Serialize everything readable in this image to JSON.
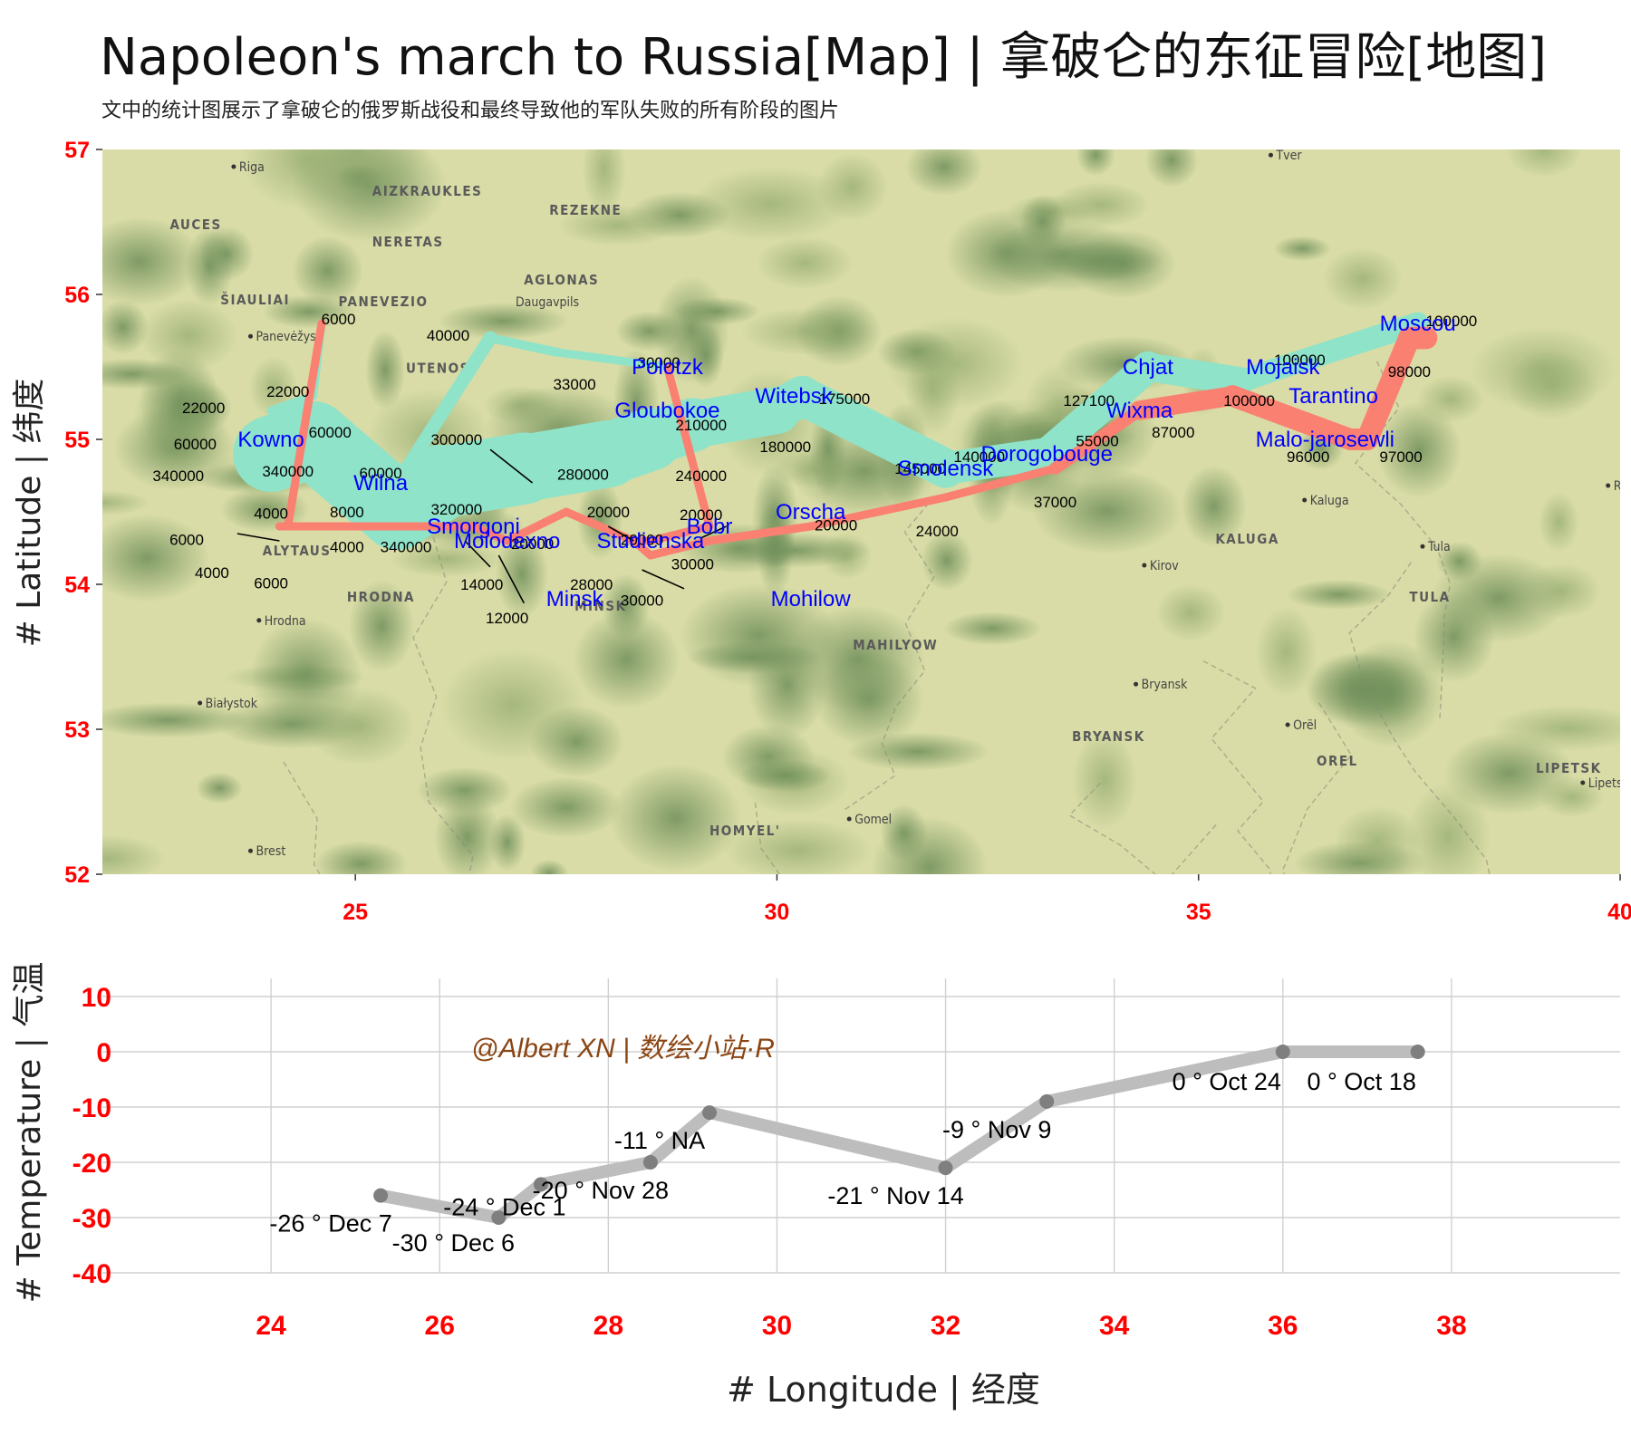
{
  "title": "Napoleon's march to Russia[Map] | 拿破仑的东征冒险[地图]",
  "subtitle": "文中的统计图展示了拿破仑的俄罗斯战役和最终导致他的军队失败的所有阶段的图片",
  "watermark": "@Albert XN | 数绘小站·R",
  "colors": {
    "advance": "#8fe3c8",
    "retreat": "#fa8072",
    "city": "#0000ff",
    "tick": "#ff0000",
    "temp_line": "#bdbdbd",
    "temp_point": "#7f7f7f",
    "watermark": "#8b4513"
  },
  "chart_data": [
    {
      "type": "map",
      "ylabel": "# Latitude | 纬度",
      "xlim": [
        22,
        40
      ],
      "ylim": [
        52,
        57
      ],
      "x_ticks": [
        25,
        30,
        35,
        40
      ],
      "y_ticks": [
        52,
        53,
        54,
        55,
        56,
        57
      ],
      "basemap_labels": [
        {
          "text": "Riga",
          "lon": 23.6,
          "lat": 56.85,
          "dot": true
        },
        {
          "text": "AIZKRAUKLES",
          "lon": 25.2,
          "lat": 56.68
        },
        {
          "text": "AUCES",
          "lon": 22.8,
          "lat": 56.45
        },
        {
          "text": "REZEKNE",
          "lon": 27.3,
          "lat": 56.55
        },
        {
          "text": "NERETAS",
          "lon": 25.2,
          "lat": 56.33
        },
        {
          "text": "AGLONAS",
          "lon": 27.0,
          "lat": 56.07
        },
        {
          "text": "ŠIAULIAI",
          "lon": 23.4,
          "lat": 55.93
        },
        {
          "text": "PANEVEZIO",
          "lon": 24.8,
          "lat": 55.92
        },
        {
          "text": "Daugavpils",
          "lon": 26.9,
          "lat": 55.92
        },
        {
          "text": "Panevėžys",
          "lon": 23.8,
          "lat": 55.68,
          "dot": true
        },
        {
          "text": "UTENOS",
          "lon": 25.6,
          "lat": 55.46
        },
        {
          "text": "Tver",
          "lon": 35.9,
          "lat": 56.93,
          "dot": true
        },
        {
          "text": "KALUGA",
          "lon": 35.2,
          "lat": 54.28
        },
        {
          "text": "Kaluga",
          "lon": 36.3,
          "lat": 54.55,
          "dot": true
        },
        {
          "text": "Kirov",
          "lon": 34.4,
          "lat": 54.1,
          "dot": true
        },
        {
          "text": "Tula",
          "lon": 37.7,
          "lat": 54.23,
          "dot": true
        },
        {
          "text": "TULA",
          "lon": 37.5,
          "lat": 53.88
        },
        {
          "text": "ALYTAUS",
          "lon": 23.9,
          "lat": 54.2
        },
        {
          "text": "HRODNA",
          "lon": 24.9,
          "lat": 53.88
        },
        {
          "text": "Hrodna",
          "lon": 23.9,
          "lat": 53.72,
          "dot": true
        },
        {
          "text": "MINSK",
          "lon": 27.6,
          "lat": 53.82
        },
        {
          "text": "MAHILYOW",
          "lon": 30.9,
          "lat": 53.55
        },
        {
          "text": "Białystok",
          "lon": 23.2,
          "lat": 53.15,
          "dot": true
        },
        {
          "text": "Bryansk",
          "lon": 34.3,
          "lat": 53.28,
          "dot": true
        },
        {
          "text": "BRYANSK",
          "lon": 33.5,
          "lat": 52.92
        },
        {
          "text": "Orël",
          "lon": 36.1,
          "lat": 53.0,
          "dot": true
        },
        {
          "text": "OREL",
          "lon": 36.4,
          "lat": 52.75
        },
        {
          "text": "LIPETSK",
          "lon": 39.0,
          "lat": 52.7
        },
        {
          "text": "Lipets",
          "lon": 39.6,
          "lat": 52.6,
          "dot": true
        },
        {
          "text": "HOMYEL'",
          "lon": 29.2,
          "lat": 52.27
        },
        {
          "text": "Gomel",
          "lon": 30.9,
          "lat": 52.35,
          "dot": true
        },
        {
          "text": "Brest",
          "lon": 23.8,
          "lat": 52.13,
          "dot": true
        },
        {
          "text": "Ryaz",
          "lon": 39.9,
          "lat": 54.65,
          "dot": true
        }
      ],
      "advance_groups": [
        [
          [
            24.0,
            54.9,
            340000
          ],
          [
            24.5,
            55.0,
            340000
          ],
          [
            25.5,
            54.5,
            340000
          ],
          [
            26.0,
            54.7,
            320000
          ],
          [
            27.0,
            54.8,
            300000
          ],
          [
            28.0,
            54.9,
            280000
          ],
          [
            28.5,
            55.0,
            240000
          ],
          [
            29.0,
            55.1,
            210000
          ],
          [
            30.0,
            55.2,
            180000
          ],
          [
            30.3,
            55.3,
            175000
          ],
          [
            32.0,
            54.8,
            145000
          ],
          [
            33.2,
            54.9,
            140000
          ],
          [
            34.4,
            55.5,
            127100
          ],
          [
            35.5,
            55.4,
            100000
          ],
          [
            36.0,
            55.5,
            100000
          ],
          [
            37.6,
            55.8,
            100000
          ]
        ],
        [
          [
            24.0,
            55.1,
            60000
          ],
          [
            24.5,
            55.2,
            60000
          ],
          [
            25.5,
            54.7,
            60000
          ],
          [
            26.6,
            55.7,
            40000
          ],
          [
            27.4,
            55.6,
            33000
          ],
          [
            28.7,
            55.5,
            33000
          ]
        ],
        [
          [
            24.0,
            55.2,
            22000
          ],
          [
            24.5,
            55.3,
            22000
          ],
          [
            24.6,
            55.8,
            6000
          ]
        ]
      ],
      "retreat_groups": [
        [
          [
            37.7,
            55.7,
            100000
          ],
          [
            37.5,
            55.7,
            98000
          ],
          [
            37.0,
            55.0,
            97000
          ],
          [
            36.8,
            55.0,
            96000
          ],
          [
            35.4,
            55.3,
            87000
          ],
          [
            34.3,
            55.2,
            55000
          ],
          [
            33.3,
            54.8,
            37000
          ],
          [
            32.0,
            54.6,
            24000
          ],
          [
            30.4,
            54.4,
            20000
          ],
          [
            29.2,
            54.3,
            20000
          ],
          [
            28.5,
            54.2,
            20000
          ],
          [
            28.3,
            54.3,
            20000
          ],
          [
            27.5,
            54.5,
            20000
          ],
          [
            26.8,
            54.3,
            12000
          ],
          [
            26.4,
            54.4,
            14000
          ],
          [
            25.0,
            54.4,
            8000
          ],
          [
            24.4,
            54.4,
            4000
          ],
          [
            24.2,
            54.4,
            4000
          ],
          [
            24.1,
            54.4,
            4000
          ]
        ],
        [
          [
            28.7,
            55.5,
            30000
          ],
          [
            29.2,
            54.4,
            30000
          ],
          [
            28.5,
            54.3,
            30000
          ],
          [
            28.3,
            54.3,
            28000
          ]
        ],
        [
          [
            24.6,
            55.8,
            6000
          ],
          [
            24.2,
            54.4,
            6000
          ],
          [
            24.1,
            54.4,
            6000
          ]
        ]
      ],
      "cities": [
        {
          "name": "Kowno",
          "lon": 24.0,
          "lat": 55.0
        },
        {
          "name": "Wilna",
          "lon": 25.3,
          "lat": 54.7
        },
        {
          "name": "Smorgoni",
          "lon": 26.4,
          "lat": 54.4
        },
        {
          "name": "Moiodexno",
          "lon": 26.8,
          "lat": 54.3
        },
        {
          "name": "Gloubokoe",
          "lon": 28.7,
          "lat": 55.2
        },
        {
          "name": "Minsk",
          "lon": 27.6,
          "lat": 53.9
        },
        {
          "name": "Studienska",
          "lon": 28.5,
          "lat": 54.3
        },
        {
          "name": "Polotzk",
          "lon": 28.7,
          "lat": 55.5
        },
        {
          "name": "Bobr",
          "lon": 29.2,
          "lat": 54.4
        },
        {
          "name": "Witebsk",
          "lon": 30.2,
          "lat": 55.3
        },
        {
          "name": "Orscha",
          "lon": 30.4,
          "lat": 54.5
        },
        {
          "name": "Mohilow",
          "lon": 30.4,
          "lat": 53.9
        },
        {
          "name": "Smolensk",
          "lon": 32.0,
          "lat": 54.8
        },
        {
          "name": "Dorogobouge",
          "lon": 33.2,
          "lat": 54.9
        },
        {
          "name": "Wixma",
          "lon": 34.3,
          "lat": 55.2
        },
        {
          "name": "Chjat",
          "lon": 34.4,
          "lat": 55.5
        },
        {
          "name": "Mojaisk",
          "lon": 36.0,
          "lat": 55.5
        },
        {
          "name": "Moscou",
          "lon": 37.6,
          "lat": 55.8
        },
        {
          "name": "Tarantino",
          "lon": 36.6,
          "lat": 55.3
        },
        {
          "name": "Malo-jarosewli",
          "lon": 36.5,
          "lat": 55.0
        }
      ],
      "count_labels": [
        {
          "text": "6000",
          "lon": 24.8,
          "lat": 55.83
        },
        {
          "text": "40000",
          "lon": 26.1,
          "lat": 55.72
        },
        {
          "text": "22000",
          "lon": 24.2,
          "lat": 55.33
        },
        {
          "text": "22000",
          "lon": 23.2,
          "lat": 55.22
        },
        {
          "text": "60000",
          "lon": 24.7,
          "lat": 55.05
        },
        {
          "text": "60000",
          "lon": 23.1,
          "lat": 54.97
        },
        {
          "text": "340000",
          "lon": 22.9,
          "lat": 54.75
        },
        {
          "text": "340000",
          "lon": 24.2,
          "lat": 54.78
        },
        {
          "text": "60000",
          "lon": 25.3,
          "lat": 54.77
        },
        {
          "text": "33000",
          "lon": 27.6,
          "lat": 55.38
        },
        {
          "text": "30000",
          "lon": 28.6,
          "lat": 55.53
        },
        {
          "text": "300000",
          "lon": 26.2,
          "lat": 55.0
        },
        {
          "text": "280000",
          "lon": 27.7,
          "lat": 54.76
        },
        {
          "text": "210000",
          "lon": 29.1,
          "lat": 55.1
        },
        {
          "text": "240000",
          "lon": 29.1,
          "lat": 54.75
        },
        {
          "text": "180000",
          "lon": 30.1,
          "lat": 54.95
        },
        {
          "text": "175000",
          "lon": 30.8,
          "lat": 55.28
        },
        {
          "text": "145000",
          "lon": 31.7,
          "lat": 54.8
        },
        {
          "text": "140000",
          "lon": 32.4,
          "lat": 54.88
        },
        {
          "text": "127100",
          "lon": 33.7,
          "lat": 55.27
        },
        {
          "text": "55000",
          "lon": 33.8,
          "lat": 54.99
        },
        {
          "text": "87000",
          "lon": 34.7,
          "lat": 55.05
        },
        {
          "text": "37000",
          "lon": 33.3,
          "lat": 54.57
        },
        {
          "text": "24000",
          "lon": 31.9,
          "lat": 54.37
        },
        {
          "text": "20000",
          "lon": 30.7,
          "lat": 54.41
        },
        {
          "text": "20000",
          "lon": 29.1,
          "lat": 54.48
        },
        {
          "text": "20000",
          "lon": 28.0,
          "lat": 54.5
        },
        {
          "text": "20000",
          "lon": 28.4,
          "lat": 54.31
        },
        {
          "text": "20000",
          "lon": 27.1,
          "lat": 54.28
        },
        {
          "text": "30000",
          "lon": 29.0,
          "lat": 54.14
        },
        {
          "text": "30000",
          "lon": 28.4,
          "lat": 53.89
        },
        {
          "text": "28000",
          "lon": 27.8,
          "lat": 54.0
        },
        {
          "text": "320000",
          "lon": 26.2,
          "lat": 54.52
        },
        {
          "text": "340000",
          "lon": 25.6,
          "lat": 54.26
        },
        {
          "text": "8000",
          "lon": 24.9,
          "lat": 54.5
        },
        {
          "text": "4000",
          "lon": 24.0,
          "lat": 54.49
        },
        {
          "text": "4000",
          "lon": 24.9,
          "lat": 54.26
        },
        {
          "text": "6000",
          "lon": 23.0,
          "lat": 54.31
        },
        {
          "text": "4000",
          "lon": 23.3,
          "lat": 54.08
        },
        {
          "text": "6000",
          "lon": 24.0,
          "lat": 54.01
        },
        {
          "text": "14000",
          "lon": 26.5,
          "lat": 54.0
        },
        {
          "text": "12000",
          "lon": 26.8,
          "lat": 53.77
        },
        {
          "text": "100000",
          "lon": 38.0,
          "lat": 55.82
        },
        {
          "text": "98000",
          "lon": 37.5,
          "lat": 55.47
        },
        {
          "text": "100000",
          "lon": 36.2,
          "lat": 55.55
        },
        {
          "text": "100000",
          "lon": 35.6,
          "lat": 55.27
        },
        {
          "text": "96000",
          "lon": 36.3,
          "lat": 54.88
        },
        {
          "text": "97000",
          "lon": 37.4,
          "lat": 54.88
        }
      ],
      "leader_lines": [
        {
          "lon1": 27.1,
          "lat1": 54.7,
          "lon2": 26.6,
          "lat2": 54.93
        },
        {
          "lon1": 23.6,
          "lat1": 54.35,
          "lon2": 24.1,
          "lat2": 54.3
        },
        {
          "lon1": 26.6,
          "lat1": 54.12,
          "lon2": 26.3,
          "lat2": 54.3
        },
        {
          "lon1": 27.0,
          "lat1": 53.87,
          "lon2": 26.7,
          "lat2": 54.2
        },
        {
          "lon1": 28.0,
          "lat1": 54.4,
          "lon2": 28.3,
          "lat2": 54.3
        },
        {
          "lon1": 28.9,
          "lat1": 53.97,
          "lon2": 28.4,
          "lat2": 54.1
        },
        {
          "lon1": 29.4,
          "lat1": 54.4,
          "lon2": 29.1,
          "lat2": 54.32
        }
      ]
    },
    {
      "type": "line",
      "xlabel": "# Longitude | 经度",
      "ylabel": "# Temperature | 气温",
      "xlim": [
        22,
        40
      ],
      "ylim": [
        -40,
        10
      ],
      "x_ticks": [
        24,
        26,
        28,
        30,
        32,
        34,
        36,
        38
      ],
      "y_ticks": [
        10,
        0,
        -10,
        -20,
        -30,
        -40
      ],
      "points": [
        {
          "x": 37.6,
          "y": 0,
          "label": "0 ° Oct 18"
        },
        {
          "x": 36.0,
          "y": 0,
          "label": "0 ° Oct 24"
        },
        {
          "x": 33.2,
          "y": -9,
          "label": "-9 ° Nov 9"
        },
        {
          "x": 32.0,
          "y": -21,
          "label": "-21 ° Nov 14"
        },
        {
          "x": 29.2,
          "y": -11,
          "label": "-11 °  NA"
        },
        {
          "x": 28.5,
          "y": -20,
          "label": "-20 ° Nov 28"
        },
        {
          "x": 27.2,
          "y": -24,
          "label": "-24 ° Dec 1"
        },
        {
          "x": 26.7,
          "y": -30,
          "label": "-30 ° Dec 6"
        },
        {
          "x": 25.3,
          "y": -26,
          "label": "-26 ° Dec 7"
        }
      ]
    }
  ]
}
